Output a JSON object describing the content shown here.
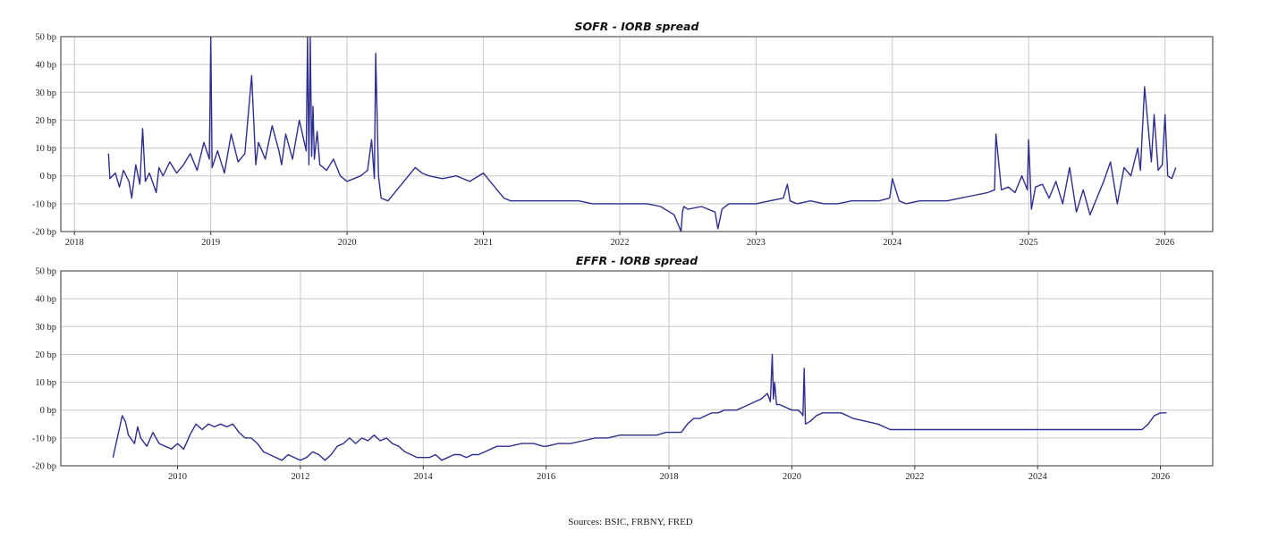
{
  "chart_data": [
    {
      "type": "line",
      "title": "SOFR - IORB spread",
      "xlim": [
        2017.9,
        2026.35
      ],
      "ylim": [
        -20,
        50
      ],
      "yticks": [
        -20,
        -10,
        0,
        10,
        20,
        30,
        40,
        50
      ],
      "ytick_labels": [
        "-20 bp",
        "-10 bp",
        "0 bp",
        "10 bp",
        "20 bp",
        "30 bp",
        "40 bp",
        "50 bp"
      ],
      "xticks": [
        2018,
        2019,
        2020,
        2021,
        2022,
        2023,
        2024,
        2025,
        2026
      ],
      "xtick_labels": [
        "2018",
        "2019",
        "2020",
        "2021",
        "2022",
        "2023",
        "2024",
        "2025",
        "2026"
      ],
      "grid": true,
      "series": [
        {
          "color": "#2e2e8f",
          "x": [
            2018.25,
            2018.26,
            2018.3,
            2018.33,
            2018.36,
            2018.4,
            2018.42,
            2018.45,
            2018.48,
            2018.5,
            2018.52,
            2018.55,
            2018.6,
            2018.62,
            2018.65,
            2018.7,
            2018.75,
            2018.8,
            2018.85,
            2018.9,
            2018.95,
            2018.99,
            2019.0,
            2019.01,
            2019.05,
            2019.1,
            2019.15,
            2019.2,
            2019.25,
            2019.3,
            2019.33,
            2019.35,
            2019.4,
            2019.45,
            2019.5,
            2019.52,
            2019.55,
            2019.6,
            2019.65,
            2019.7,
            2019.71,
            2019.72,
            2019.73,
            2019.74,
            2019.75,
            2019.76,
            2019.78,
            2019.8,
            2019.85,
            2019.9,
            2019.95,
            2020.0,
            2020.05,
            2020.1,
            2020.15,
            2020.18,
            2020.2,
            2020.21,
            2020.23,
            2020.25,
            2020.3,
            2020.35,
            2020.4,
            2020.45,
            2020.5,
            2020.55,
            2020.6,
            2020.7,
            2020.8,
            2020.9,
            2021.0,
            2021.05,
            2021.1,
            2021.15,
            2021.2,
            2021.3,
            2021.5,
            2021.7,
            2021.8,
            2021.9,
            2022.0,
            2022.1,
            2022.2,
            2022.3,
            2022.4,
            2022.45,
            2022.46,
            2022.47,
            2022.5,
            2022.6,
            2022.7,
            2022.72,
            2022.75,
            2022.8,
            2022.9,
            2023.0,
            2023.1,
            2023.2,
            2023.23,
            2023.25,
            2023.3,
            2023.4,
            2023.5,
            2023.6,
            2023.7,
            2023.8,
            2023.9,
            2023.98,
            2024.0,
            2024.05,
            2024.1,
            2024.2,
            2024.3,
            2024.4,
            2024.5,
            2024.6,
            2024.7,
            2024.75,
            2024.76,
            2024.8,
            2024.85,
            2024.9,
            2024.95,
            2024.99,
            2025.0,
            2025.02,
            2025.05,
            2025.1,
            2025.15,
            2025.2,
            2025.25,
            2025.3,
            2025.35,
            2025.4,
            2025.45,
            2025.5,
            2025.55,
            2025.6,
            2025.65,
            2025.7,
            2025.75,
            2025.8,
            2025.82,
            2025.85,
            2025.9,
            2025.92,
            2025.95,
            2025.98,
            2026.0,
            2026.02,
            2026.05,
            2026.08
          ],
          "y": [
            8,
            -1,
            1,
            -4,
            2,
            -2,
            -8,
            4,
            -3,
            17,
            -2,
            1,
            -6,
            3,
            0,
            5,
            1,
            4,
            8,
            2,
            12,
            6,
            50,
            3,
            9,
            1,
            15,
            5,
            8,
            36,
            4,
            12,
            6,
            18,
            9,
            4,
            15,
            6,
            20,
            9,
            50,
            4,
            50,
            7,
            25,
            6,
            16,
            4,
            2,
            6,
            0,
            -2,
            -1,
            0,
            2,
            13,
            -1,
            44,
            0,
            -8,
            -9,
            -6,
            -3,
            0,
            3,
            1,
            0,
            -1,
            0,
            -2,
            1,
            -2,
            -5,
            -8,
            -9,
            -9,
            -9,
            -9,
            -10,
            -10,
            -10,
            -10,
            -10,
            -11,
            -14,
            -20,
            -13,
            -11,
            -12,
            -11,
            -13,
            -19,
            -12,
            -10,
            -10,
            -10,
            -9,
            -8,
            -3,
            -9,
            -10,
            -9,
            -10,
            -10,
            -9,
            -9,
            -9,
            -8,
            -1,
            -9,
            -10,
            -9,
            -9,
            -9,
            -8,
            -7,
            -6,
            -5,
            15,
            -5,
            -4,
            -6,
            0,
            -5,
            13,
            -12,
            -4,
            -3,
            -8,
            -2,
            -10,
            3,
            -13,
            -5,
            -14,
            -8,
            -2,
            5,
            -10,
            3,
            0,
            10,
            2,
            32,
            5,
            22,
            2,
            4,
            22,
            0,
            -1,
            3
          ]
        }
      ]
    },
    {
      "type": "line",
      "title": "EFFR - IORB spread",
      "xlim": [
        2008.1,
        2026.85
      ],
      "ylim": [
        -20,
        50
      ],
      "yticks": [
        -20,
        -10,
        0,
        10,
        20,
        30,
        40,
        50
      ],
      "ytick_labels": [
        "-20 bp",
        "-10 bp",
        "0 bp",
        "10 bp",
        "20 bp",
        "30 bp",
        "40 bp",
        "50 bp"
      ],
      "xticks": [
        2010,
        2012,
        2014,
        2016,
        2018,
        2020,
        2022,
        2024,
        2026
      ],
      "xtick_labels": [
        "2010",
        "2012",
        "2014",
        "2016",
        "2018",
        "2020",
        "2022",
        "2024",
        "2026"
      ],
      "grid": true,
      "series": [
        {
          "color": "#2e2e8f",
          "x": [
            2008.95,
            2009.0,
            2009.1,
            2009.15,
            2009.2,
            2009.3,
            2009.35,
            2009.4,
            2009.5,
            2009.6,
            2009.7,
            2009.8,
            2009.9,
            2010.0,
            2010.1,
            2010.2,
            2010.3,
            2010.4,
            2010.5,
            2010.6,
            2010.7,
            2010.8,
            2010.9,
            2011.0,
            2011.1,
            2011.2,
            2011.3,
            2011.4,
            2011.5,
            2011.6,
            2011.7,
            2011.8,
            2011.9,
            2012.0,
            2012.1,
            2012.2,
            2012.3,
            2012.4,
            2012.5,
            2012.6,
            2012.7,
            2012.8,
            2012.9,
            2013.0,
            2013.1,
            2013.2,
            2013.3,
            2013.4,
            2013.5,
            2013.6,
            2013.7,
            2013.8,
            2013.9,
            2014.0,
            2014.1,
            2014.2,
            2014.3,
            2014.4,
            2014.5,
            2014.6,
            2014.7,
            2014.8,
            2014.9,
            2015.0,
            2015.2,
            2015.4,
            2015.6,
            2015.8,
            2015.95,
            2016.0,
            2016.2,
            2016.4,
            2016.6,
            2016.8,
            2016.95,
            2017.0,
            2017.2,
            2017.4,
            2017.6,
            2017.8,
            2017.95,
            2018.0,
            2018.1,
            2018.2,
            2018.3,
            2018.4,
            2018.5,
            2018.6,
            2018.7,
            2018.8,
            2018.9,
            2019.0,
            2019.1,
            2019.2,
            2019.3,
            2019.4,
            2019.5,
            2019.6,
            2019.65,
            2019.68,
            2019.7,
            2019.72,
            2019.75,
            2019.8,
            2019.9,
            2020.0,
            2020.1,
            2020.15,
            2020.18,
            2020.2,
            2020.22,
            2020.3,
            2020.4,
            2020.5,
            2020.6,
            2020.7,
            2020.8,
            2020.9,
            2021.0,
            2021.2,
            2021.4,
            2021.5,
            2021.6,
            2021.7,
            2021.8,
            2022.0,
            2022.5,
            2023.0,
            2023.5,
            2024.0,
            2024.5,
            2025.0,
            2025.5,
            2025.7,
            2025.8,
            2025.9,
            2026.0,
            2026.1
          ],
          "y": [
            -17,
            -12,
            -2,
            -4,
            -9,
            -12,
            -6,
            -10,
            -13,
            -8,
            -12,
            -13,
            -14,
            -12,
            -14,
            -9,
            -5,
            -7,
            -5,
            -6,
            -5,
            -6,
            -5,
            -8,
            -10,
            -10,
            -12,
            -15,
            -16,
            -17,
            -18,
            -16,
            -17,
            -18,
            -17,
            -15,
            -16,
            -18,
            -16,
            -13,
            -12,
            -10,
            -12,
            -10,
            -11,
            -9,
            -11,
            -10,
            -12,
            -13,
            -15,
            -16,
            -17,
            -17,
            -17,
            -16,
            -18,
            -17,
            -16,
            -16,
            -17,
            -16,
            -16,
            -15,
            -13,
            -13,
            -12,
            -12,
            -13,
            -13,
            -12,
            -12,
            -11,
            -10,
            -10,
            -10,
            -9,
            -9,
            -9,
            -9,
            -8,
            -8,
            -8,
            -8,
            -5,
            -3,
            -3,
            -2,
            -1,
            -1,
            0,
            0,
            0,
            1,
            2,
            3,
            4,
            6,
            3,
            20,
            4,
            10,
            2,
            2,
            1,
            0,
            0,
            -1,
            -2,
            15,
            -5,
            -4,
            -2,
            -1,
            -1,
            -1,
            -1,
            -2,
            -3,
            -4,
            -5,
            -6,
            -7,
            -7,
            -7,
            -7,
            -7,
            -7,
            -7,
            -7,
            -7,
            -7,
            -7,
            -7,
            -5,
            -2,
            -1,
            -1
          ]
        }
      ]
    }
  ],
  "footer": {
    "sources": "Sources: BSIC, FRBNY, FRED"
  }
}
